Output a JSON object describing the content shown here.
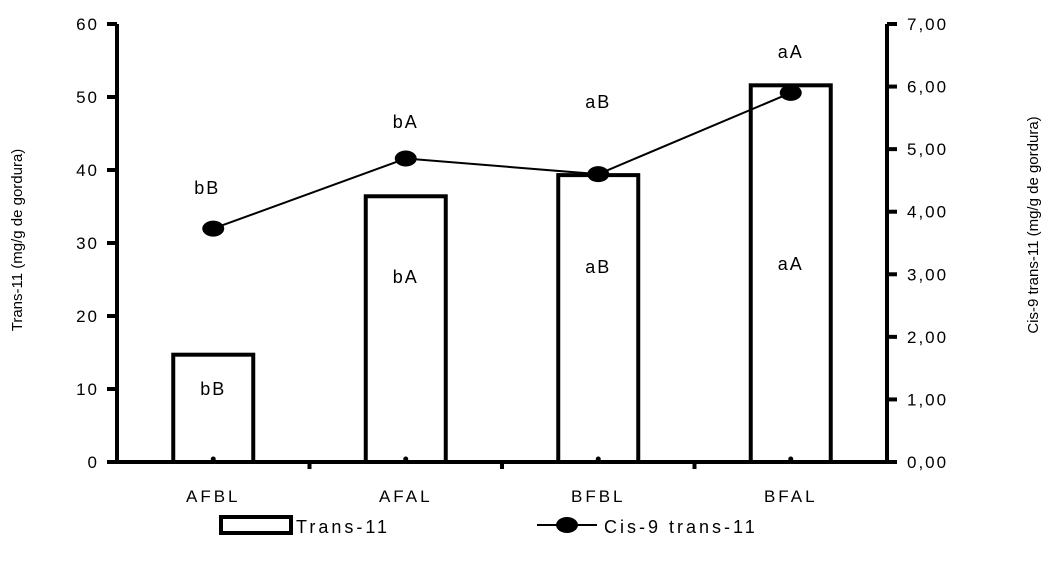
{
  "chart_data": {
    "type": "bar",
    "categories": [
      "AFBL",
      "AFAL",
      "BFBL",
      "BFAL"
    ],
    "series": [
      {
        "name": "Trans-11",
        "kind": "bar",
        "axis": "left",
        "values": [
          14.7,
          36.4,
          39.3,
          51.6
        ],
        "annotations": [
          "bB",
          "bA",
          "aB",
          "aA"
        ]
      },
      {
        "name": "Cis-9 trans-11",
        "kind": "line",
        "axis": "right",
        "values": [
          3.73,
          4.85,
          4.6,
          5.9
        ],
        "annotations": [
          "bB",
          "bA",
          "aB",
          "aA"
        ]
      }
    ],
    "left_axis": {
      "label": "Trans-11 (mg/g de gordura)",
      "ylim": [
        0,
        60
      ],
      "ticks": [
        "0",
        "10",
        "20",
        "30",
        "40",
        "50",
        "60"
      ]
    },
    "right_axis": {
      "label": "Cis-9 trans-11  (mg/g de gordura)",
      "ylim": [
        0,
        7
      ],
      "ticks": [
        "0,00",
        "1,00",
        "2,00",
        "3,00",
        "4,00",
        "5,00",
        "6,00",
        "7,00"
      ]
    },
    "grid": false,
    "legend_position": "bottom"
  }
}
